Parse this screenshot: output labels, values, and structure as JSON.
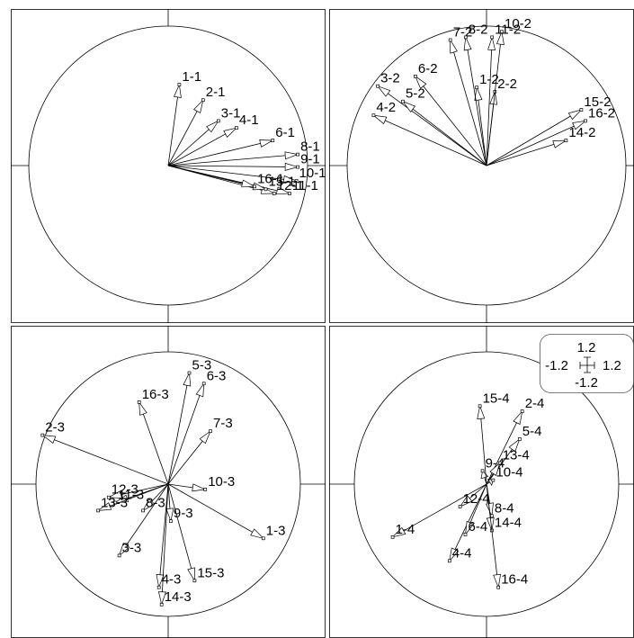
{
  "chart_data": [
    {
      "type": "scatter",
      "axes": "1-2",
      "xlim": [
        -1.2,
        1.2
      ],
      "ylim": [
        -1.2,
        1.2
      ],
      "grid": false,
      "points": [
        {
          "label": "1-1",
          "x": 0.08,
          "y": 0.58
        },
        {
          "label": "2-1",
          "x": 0.25,
          "y": 0.47
        },
        {
          "label": "3-1",
          "x": 0.36,
          "y": 0.32
        },
        {
          "label": "4-1",
          "x": 0.49,
          "y": 0.27
        },
        {
          "label": "6-1",
          "x": 0.75,
          "y": 0.18
        },
        {
          "label": "8-1",
          "x": 0.93,
          "y": 0.08
        },
        {
          "label": "9-1",
          "x": 0.93,
          "y": -0.01
        },
        {
          "label": "10-1",
          "x": 0.92,
          "y": -0.11
        },
        {
          "label": "11-1",
          "x": 0.87,
          "y": -0.2
        },
        {
          "label": "12-1",
          "x": 0.76,
          "y": -0.2
        },
        {
          "label": "15-1",
          "x": 0.7,
          "y": -0.17
        },
        {
          "label": "16-1",
          "x": 0.62,
          "y": -0.15
        }
      ]
    },
    {
      "type": "scatter",
      "axes": "1-2",
      "xlim": [
        -1.2,
        1.2
      ],
      "ylim": [
        -1.2,
        1.2
      ],
      "grid": false,
      "points": [
        {
          "label": "1-2",
          "x": -0.07,
          "y": 0.56
        },
        {
          "label": "2-2",
          "x": 0.06,
          "y": 0.53
        },
        {
          "label": "3-2",
          "x": -0.78,
          "y": 0.57
        },
        {
          "label": "4-2",
          "x": -0.81,
          "y": 0.36
        },
        {
          "label": "5-2",
          "x": -0.6,
          "y": 0.46
        },
        {
          "label": "6-2",
          "x": -0.51,
          "y": 0.64
        },
        {
          "label": "7-2",
          "x": -0.26,
          "y": 0.9
        },
        {
          "label": "8-2",
          "x": -0.15,
          "y": 0.92
        },
        {
          "label": "10-2",
          "x": 0.11,
          "y": 0.96
        },
        {
          "label": "11-2",
          "x": 0.04,
          "y": 0.92
        },
        {
          "label": "14-2",
          "x": 0.57,
          "y": 0.18
        },
        {
          "label": "15-2",
          "x": 0.68,
          "y": 0.4
        },
        {
          "label": "16-2",
          "x": 0.71,
          "y": 0.32
        }
      ]
    },
    {
      "type": "scatter",
      "axes": "1-2",
      "xlim": [
        -1.2,
        1.2
      ],
      "ylim": [
        -1.2,
        1.2
      ],
      "grid": false,
      "points": [
        {
          "label": "1-3",
          "x": 0.72,
          "y": -0.41
        },
        {
          "label": "2-3",
          "x": -0.95,
          "y": 0.37
        },
        {
          "label": "3-3",
          "x": -0.37,
          "y": -0.54
        },
        {
          "label": "4-3",
          "x": -0.07,
          "y": -0.78
        },
        {
          "label": "5-3",
          "x": 0.16,
          "y": 0.84
        },
        {
          "label": "6-3",
          "x": 0.27,
          "y": 0.76
        },
        {
          "label": "7-3",
          "x": 0.32,
          "y": 0.4
        },
        {
          "label": "8-3",
          "x": -0.19,
          "y": -0.2
        },
        {
          "label": "9-3",
          "x": 0.02,
          "y": -0.28
        },
        {
          "label": "10-3",
          "x": 0.28,
          "y": -0.04
        },
        {
          "label": "11-3",
          "x": -0.4,
          "y": -0.14
        },
        {
          "label": "12-3",
          "x": -0.45,
          "y": -0.1
        },
        {
          "label": "13-3",
          "x": -0.53,
          "y": -0.2
        },
        {
          "label": "14-3",
          "x": -0.05,
          "y": -0.91
        },
        {
          "label": "15-3",
          "x": 0.2,
          "y": -0.73
        },
        {
          "label": "16-3",
          "x": -0.22,
          "y": 0.62
        }
      ]
    },
    {
      "type": "scatter",
      "axes": "1-2",
      "xlim": [
        -1.2,
        1.2
      ],
      "ylim": [
        -1.2,
        1.2
      ],
      "grid": false,
      "points": [
        {
          "label": "1-4",
          "x": -0.71,
          "y": -0.4
        },
        {
          "label": "2-4",
          "x": 0.27,
          "y": 0.55
        },
        {
          "label": "4-4",
          "x": -0.28,
          "y": -0.58
        },
        {
          "label": "5-4",
          "x": 0.25,
          "y": 0.34
        },
        {
          "label": "6-4",
          "x": -0.16,
          "y": -0.38
        },
        {
          "label": "8-4",
          "x": 0.04,
          "y": -0.24
        },
        {
          "label": "9-4",
          "x": -0.03,
          "y": 0.1
        },
        {
          "label": "10-4",
          "x": 0.05,
          "y": 0.03
        },
        {
          "label": "12-4",
          "x": -0.2,
          "y": -0.17
        },
        {
          "label": "13-4",
          "x": 0.1,
          "y": 0.16
        },
        {
          "label": "14-4",
          "x": 0.04,
          "y": -0.35
        },
        {
          "label": "15-4",
          "x": -0.05,
          "y": 0.59
        },
        {
          "label": "16-4",
          "x": 0.09,
          "y": -0.78
        }
      ]
    }
  ],
  "scale_legend": {
    "top": "1.2",
    "bottom": "-1.2",
    "left": "-1.2",
    "right": "1.2"
  }
}
